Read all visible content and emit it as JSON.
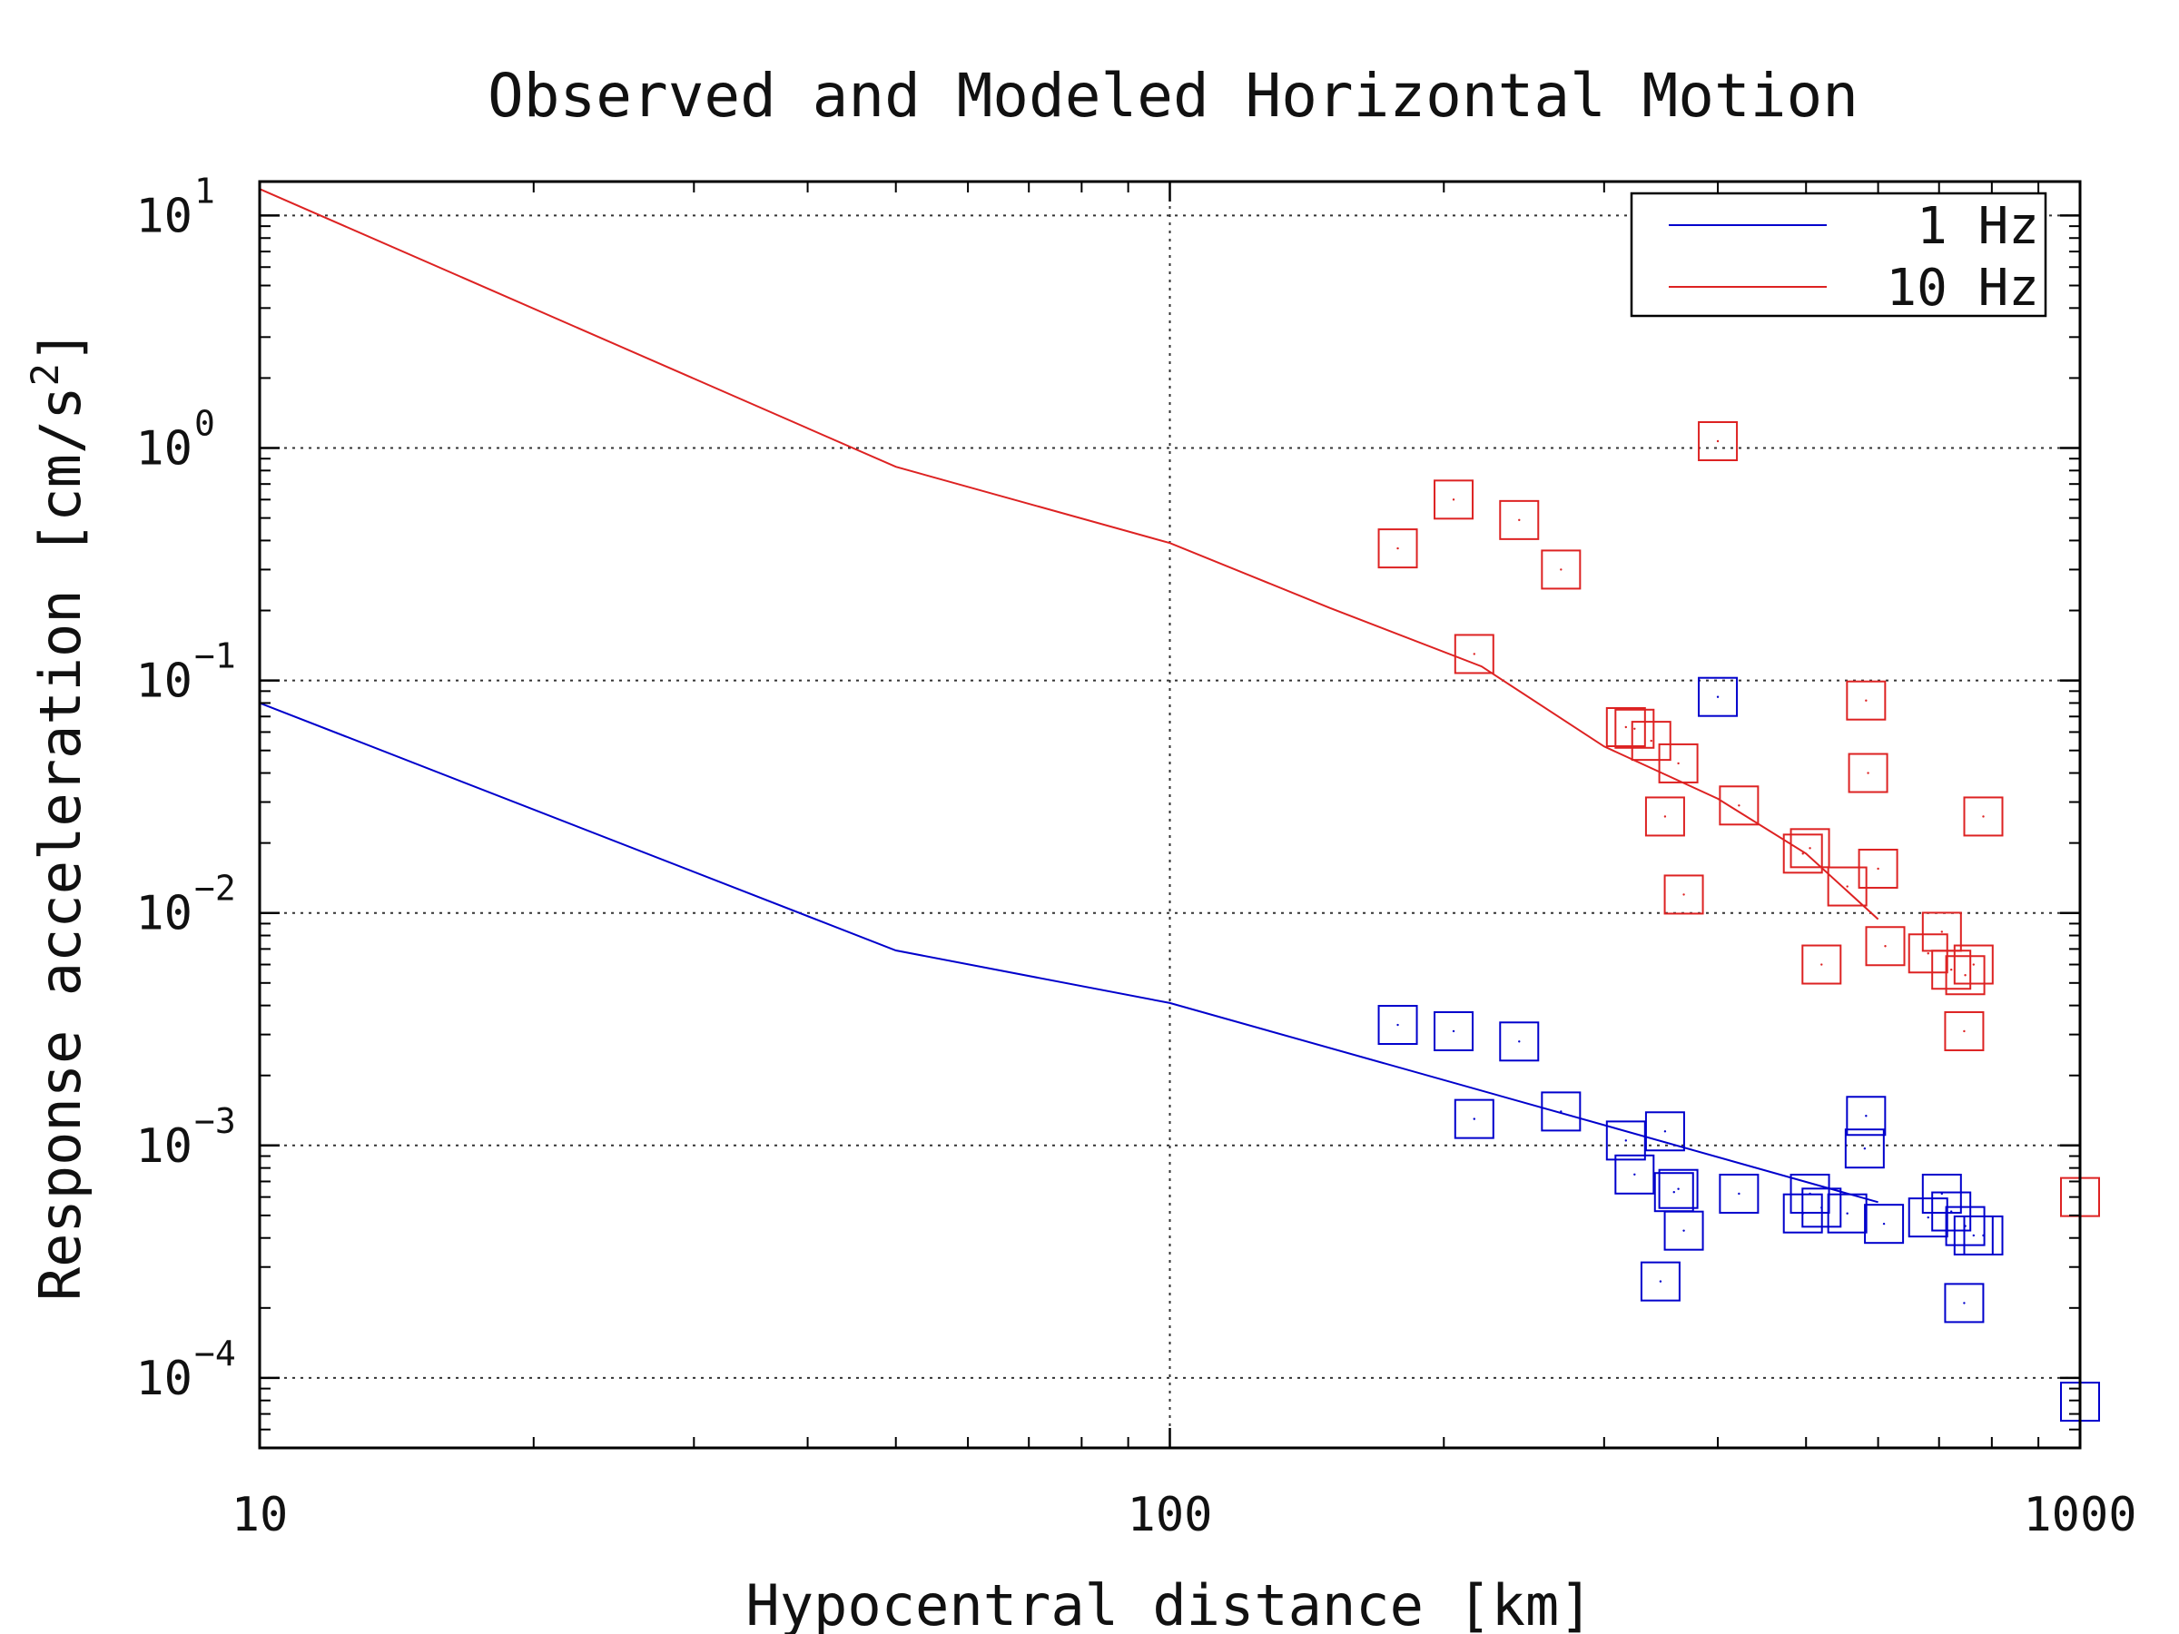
{
  "chart_data": {
    "type": "scatter",
    "title": "Observed and Modeled Horizontal Motion",
    "xlabel": "Hypocentral distance [km]",
    "ylabel": "Response acceleration [cm/s2]",
    "xscale": "log",
    "yscale": "log",
    "xlim": [
      10,
      1000
    ],
    "ylim": [
      5e-05,
      14
    ],
    "x_ticks": [
      "10",
      "100",
      "1000"
    ],
    "y_ticks": [
      {
        "value": 10,
        "base": "10",
        "exp": "1"
      },
      {
        "value": 1,
        "base": "10",
        "exp": "0"
      },
      {
        "value": 0.1,
        "base": "10",
        "exp": "−1"
      },
      {
        "value": 0.01,
        "base": "10",
        "exp": "−2"
      },
      {
        "value": 0.001,
        "base": "10",
        "exp": "−3"
      },
      {
        "value": 0.0001,
        "base": "10",
        "exp": "−4"
      }
    ],
    "grid": true,
    "legend_position": "top-right",
    "series": [
      {
        "name": "1 Hz",
        "color": "#0000cc",
        "model": {
          "x": [
            10,
            50,
            100,
            600
          ],
          "y": [
            0.08,
            0.0069,
            0.0041,
            0.00057
          ]
        },
        "observed": {
          "x": [
            178,
            205,
            216,
            242,
            269,
            317,
            324,
            350,
            346,
            358,
            362,
            367,
            400,
            422,
            496,
            505,
            520,
            555,
            580,
            582,
            609,
            681,
            705,
            722,
            746,
            748,
            764,
            783,
            1000
          ],
          "y": [
            0.0033,
            0.0031,
            0.0013,
            0.0028,
            0.0014,
            0.00105,
            0.00075,
            0.00115,
            0.00026,
            0.00063,
            0.00065,
            0.00043,
            0.085,
            0.00062,
            0.00051,
            0.00062,
            0.00054,
            0.00051,
            0.00097,
            0.00134,
            0.00046,
            0.00049,
            0.00062,
            0.00052,
            0.00021,
            0.00045,
            0.00041,
            0.00041,
            7.9e-05
          ]
        }
      },
      {
        "name": "10 Hz",
        "color": "#dd2222",
        "model": {
          "x": [
            10,
            50,
            100,
            150,
            220,
            300,
            400,
            500,
            600
          ],
          "y": [
            13,
            0.83,
            0.39,
            0.205,
            0.115,
            0.052,
            0.031,
            0.018,
            0.0094
          ]
        },
        "observed": {
          "x": [
            178,
            205,
            216,
            242,
            269,
            317,
            324,
            338,
            350,
            362,
            367,
            400,
            422,
            496,
            505,
            520,
            555,
            582,
            585,
            600,
            611,
            681,
            705,
            722,
            746,
            748,
            764,
            783,
            1000
          ],
          "y": [
            0.37,
            0.6,
            0.13,
            0.49,
            0.3,
            0.063,
            0.062,
            0.055,
            0.026,
            0.044,
            0.012,
            1.07,
            0.029,
            0.018,
            0.019,
            0.006,
            0.013,
            0.082,
            0.04,
            0.0155,
            0.0072,
            0.0067,
            0.0083,
            0.0057,
            0.0031,
            0.0054,
            0.006,
            0.026,
            0.0006
          ]
        }
      }
    ]
  }
}
